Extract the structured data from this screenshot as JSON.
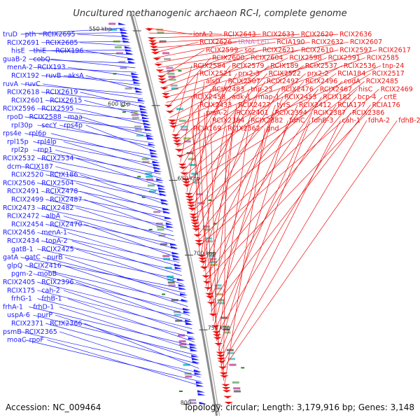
{
  "title": "Uncultured methanogenic archaeon RC-I, complete genome",
  "footer": {
    "accession": "Accession: NC_009464",
    "topology": "Topology: circular; Length: 3,179,916 bp; Genes: 3,148"
  },
  "colors": {
    "minus_strand": "#1a1aff",
    "plus_strand": "#ee1111",
    "trna": "#cc77cc",
    "backbone": "#8c8c8c"
  },
  "scale_marks": [
    {
      "label": "550 kbp",
      "side": "left"
    },
    {
      "label": "600 kbp",
      "side": "left"
    },
    {
      "label": "650 kbp",
      "side": "right"
    },
    {
      "label": "700 kbp",
      "side": "right"
    },
    {
      "label": "750 kbp",
      "side": "right"
    },
    {
      "label": "800",
      "side": "left"
    }
  ],
  "left_labels": [
    {
      "text": "truD",
      "kind": "gene"
    },
    {
      "text": "pth",
      "kind": "gene"
    },
    {
      "text": "RCIX2695",
      "kind": "gene"
    },
    {
      "text": "RCIX2691",
      "kind": "gene"
    },
    {
      "text": "RCIX2685",
      "kind": "gene"
    },
    {
      "text": "hisE",
      "kind": "gene"
    },
    {
      "text": "thiE",
      "kind": "gene"
    },
    {
      "text": "RCIX196",
      "kind": "gene"
    },
    {
      "text": "guaB-2",
      "kind": "gene"
    },
    {
      "text": "cobQ",
      "kind": "gene"
    },
    {
      "text": "menA-2",
      "kind": "gene"
    },
    {
      "text": "RCIX193",
      "kind": "gene"
    },
    {
      "text": "RCIX192",
      "kind": "gene"
    },
    {
      "text": "ruvB",
      "kind": "gene"
    },
    {
      "text": "aksA",
      "kind": "gene"
    },
    {
      "text": "ruvA",
      "kind": "gene"
    },
    {
      "text": "ruvC",
      "kind": "gene"
    },
    {
      "text": "RCIX2618",
      "kind": "gene"
    },
    {
      "text": "RCIX2619",
      "kind": "gene"
    },
    {
      "text": "RCIX2601",
      "kind": "gene"
    },
    {
      "text": "RCIX2615",
      "kind": "gene"
    },
    {
      "text": "RCIX2596",
      "kind": "gene"
    },
    {
      "text": "RCIX2595",
      "kind": "gene"
    },
    {
      "text": "rpoD",
      "kind": "gene"
    },
    {
      "text": "RCIX2588",
      "kind": "gene"
    },
    {
      "text": "maa",
      "kind": "gene"
    },
    {
      "text": "rpl30p",
      "kind": "gene"
    },
    {
      "text": "secY",
      "kind": "gene"
    },
    {
      "text": "rps4p",
      "kind": "gene"
    },
    {
      "text": "rps4e",
      "kind": "gene"
    },
    {
      "text": "rpl6p",
      "kind": "gene"
    },
    {
      "text": "rpl15p",
      "kind": "gene"
    },
    {
      "text": "rpl4lp",
      "kind": "gene"
    },
    {
      "text": "rpl2p",
      "kind": "gene"
    },
    {
      "text": "rnp1",
      "kind": "gene"
    },
    {
      "text": "RCIX2532",
      "kind": "gene"
    },
    {
      "text": "RCIX2534",
      "kind": "gene"
    },
    {
      "text": "dcm",
      "kind": "gene"
    },
    {
      "text": "RCIX187",
      "kind": "gene"
    },
    {
      "text": "RCIX2520",
      "kind": "gene"
    },
    {
      "text": "RCIX186",
      "kind": "gene"
    },
    {
      "text": "RCIX2506",
      "kind": "gene"
    },
    {
      "text": "RCIX2504",
      "kind": "gene"
    },
    {
      "text": "RCIX2491",
      "kind": "gene"
    },
    {
      "text": "RCIX2478",
      "kind": "gene"
    },
    {
      "text": "RCIX2499",
      "kind": "gene"
    },
    {
      "text": "RCIX2487",
      "kind": "gene"
    },
    {
      "text": "RCIX2473",
      "kind": "gene"
    },
    {
      "text": "RCIX2482",
      "kind": "gene"
    },
    {
      "text": "RCIX2472",
      "kind": "gene"
    },
    {
      "text": "albA",
      "kind": "gene"
    },
    {
      "text": "RCIX2454",
      "kind": "gene"
    },
    {
      "text": "RCIX2470",
      "kind": "gene"
    },
    {
      "text": "RCIX2456",
      "kind": "gene"
    },
    {
      "text": "menA-1",
      "kind": "gene"
    },
    {
      "text": "RCIX2434",
      "kind": "gene"
    },
    {
      "text": "topA-2",
      "kind": "gene"
    },
    {
      "text": "gatB-1",
      "kind": "gene"
    },
    {
      "text": "RCIX2425",
      "kind": "gene"
    },
    {
      "text": "gatA",
      "kind": "gene"
    },
    {
      "text": "gatC",
      "kind": "gene"
    },
    {
      "text": "purB",
      "kind": "gene"
    },
    {
      "text": "glpQ",
      "kind": "gene"
    },
    {
      "text": "RCIX2416",
      "kind": "gene"
    },
    {
      "text": "pgm-2",
      "kind": "gene"
    },
    {
      "text": "mobB",
      "kind": "gene"
    },
    {
      "text": "RCIX2405",
      "kind": "gene"
    },
    {
      "text": "RCIX2396",
      "kind": "gene"
    },
    {
      "text": "RCIX175",
      "kind": "gene"
    },
    {
      "text": "cah-2",
      "kind": "gene"
    },
    {
      "text": "frhG-1",
      "kind": "gene"
    },
    {
      "text": "frhB-1",
      "kind": "gene"
    },
    {
      "text": "frhA-1",
      "kind": "gene"
    },
    {
      "text": "frhD-1",
      "kind": "gene"
    },
    {
      "text": "uspA-6",
      "kind": "gene"
    },
    {
      "text": "purP",
      "kind": "gene"
    },
    {
      "text": "RCIX2371",
      "kind": "gene"
    },
    {
      "text": "RCIX2366",
      "kind": "gene"
    },
    {
      "text": "psmB",
      "kind": "gene"
    },
    {
      "text": "RCIX2365",
      "kind": "gene"
    },
    {
      "text": "moaC",
      "kind": "gene"
    },
    {
      "text": "rpoF",
      "kind": "gene"
    }
  ],
  "right_labels": [
    {
      "text": "iorA-2",
      "kind": "gene"
    },
    {
      "text": "RCIX2643",
      "kind": "gene"
    },
    {
      "text": "RCIX2633",
      "kind": "gene"
    },
    {
      "text": "RCIX2620",
      "kind": "gene"
    },
    {
      "text": "RCIX2636",
      "kind": "gene"
    },
    {
      "text": "RCIX2626",
      "kind": "gene"
    },
    {
      "text": "tRNA-Leu",
      "kind": "trna"
    },
    {
      "text": "RCIA190",
      "kind": "gene"
    },
    {
      "text": "RCIX2632",
      "kind": "gene"
    },
    {
      "text": "RCIX2607",
      "kind": "gene"
    },
    {
      "text": "RCIX2599",
      "kind": "gene"
    },
    {
      "text": "sor",
      "kind": "gene"
    },
    {
      "text": "RCIX2621",
      "kind": "gene"
    },
    {
      "text": "RCIX2610",
      "kind": "gene"
    },
    {
      "text": "RCIX2597",
      "kind": "gene"
    },
    {
      "text": "RCIX2617",
      "kind": "gene"
    },
    {
      "text": "RCIX2600",
      "kind": "gene"
    },
    {
      "text": "RCIX2604",
      "kind": "gene"
    },
    {
      "text": "RCIX2598",
      "kind": "gene"
    },
    {
      "text": "RCIX2591",
      "kind": "gene"
    },
    {
      "text": "RCIX2585",
      "kind": "gene"
    },
    {
      "text": "RCIX2584",
      "kind": "gene"
    },
    {
      "text": "RCIX2579",
      "kind": "gene"
    },
    {
      "text": "RCIX189",
      "kind": "gene"
    },
    {
      "text": "RCIX2537",
      "kind": "gene"
    },
    {
      "text": "RCIX2536",
      "kind": "gene"
    },
    {
      "text": "tnp-24",
      "kind": "gene"
    },
    {
      "text": "RCIX2521",
      "kind": "gene"
    },
    {
      "text": "prx2-3",
      "kind": "gene"
    },
    {
      "text": "RCIX2522",
      "kind": "gene"
    },
    {
      "text": "prx2-2",
      "kind": "gene"
    },
    {
      "text": "RCIA184",
      "kind": "gene"
    },
    {
      "text": "RCIX2517",
      "kind": "gene"
    },
    {
      "text": "alsD",
      "kind": "gene"
    },
    {
      "text": "RCIX2507",
      "kind": "gene"
    },
    {
      "text": "RCIX2497",
      "kind": "gene"
    },
    {
      "text": "RCIX2496",
      "kind": "gene"
    },
    {
      "text": "codA",
      "kind": "gene"
    },
    {
      "text": "RCIX2485",
      "kind": "gene"
    },
    {
      "text": "RCIX2483",
      "kind": "gene"
    },
    {
      "text": "tnp-23",
      "kind": "gene"
    },
    {
      "text": "RCIX2476",
      "kind": "gene"
    },
    {
      "text": "RCIX2467",
      "kind": "gene"
    },
    {
      "text": "hisC",
      "kind": "gene"
    },
    {
      "text": "RCIX2469",
      "kind": "gene"
    },
    {
      "text": "RCIX2458",
      "kind": "gene"
    },
    {
      "text": "adk-1",
      "kind": "gene"
    },
    {
      "text": "map-1",
      "kind": "gene"
    },
    {
      "text": "RCIX2453",
      "kind": "gene"
    },
    {
      "text": "RCIX182",
      "kind": "gene"
    },
    {
      "text": "bcp-4",
      "kind": "gene"
    },
    {
      "text": "crtE",
      "kind": "gene"
    },
    {
      "text": "RCIX2433",
      "kind": "gene"
    },
    {
      "text": "RCIX2427",
      "kind": "gene"
    },
    {
      "text": "tyrS",
      "kind": "gene"
    },
    {
      "text": "RCIX2412",
      "kind": "gene"
    },
    {
      "text": "RCIA177",
      "kind": "gene"
    },
    {
      "text": "RCIA176",
      "kind": "gene"
    },
    {
      "text": "prsA-2",
      "kind": "gene"
    },
    {
      "text": "RCIX2401",
      "kind": "gene"
    },
    {
      "text": "RCIX2394",
      "kind": "gene"
    },
    {
      "text": "RCIX2387",
      "kind": "gene"
    },
    {
      "text": "RCIX2386",
      "kind": "gene"
    },
    {
      "text": "RCIX2384",
      "kind": "gene"
    },
    {
      "text": "RCIX2382",
      "kind": "gene"
    },
    {
      "text": "fdhC",
      "kind": "gene"
    },
    {
      "text": "fdhB-3",
      "kind": "gene"
    },
    {
      "text": "cah-1",
      "kind": "gene"
    },
    {
      "text": "fdhA-2",
      "kind": "gene"
    },
    {
      "text": "fdhB-2",
      "kind": "gene"
    },
    {
      "text": "RCIA169",
      "kind": "gene"
    },
    {
      "text": "RCIX2362",
      "kind": "gene"
    },
    {
      "text": "gnd",
      "kind": "gene"
    }
  ]
}
